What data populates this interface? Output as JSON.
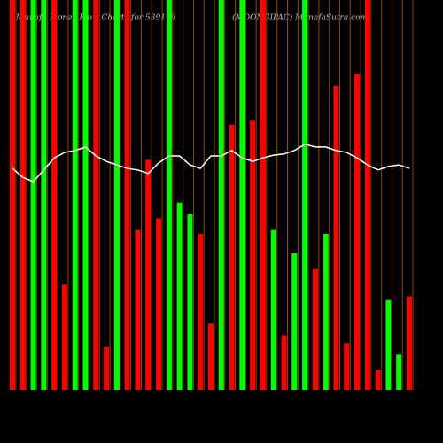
{
  "chart_data": {
    "type": "bar",
    "title": "Munafa Money Flow Charts for 539179",
    "subtitle": "(MOONGIPAC) MunafaSutra.com",
    "values": [
      100,
      100,
      100,
      100,
      100,
      27,
      100,
      100,
      100,
      11,
      100,
      100,
      41,
      59,
      44,
      100,
      48,
      45,
      40,
      17,
      100,
      68,
      100,
      69,
      100,
      41,
      14,
      35,
      100,
      31,
      40,
      78,
      12,
      81,
      100,
      5,
      23,
      9,
      24
    ],
    "bar_colors": [
      "red",
      "red",
      "lime",
      "lime",
      "red",
      "red",
      "lime",
      "lime",
      "red",
      "red",
      "lime",
      "red",
      "red",
      "red",
      "red",
      "lime",
      "lime",
      "lime",
      "red",
      "red",
      "lime",
      "red",
      "lime",
      "red",
      "red",
      "lime",
      "red",
      "lime",
      "lime",
      "red",
      "lime",
      "red",
      "red",
      "red",
      "red",
      "red",
      "lime",
      "lime",
      "red"
    ],
    "line_values": [
      56.8,
      54.5,
      53.4,
      56.4,
      59.5,
      60.9,
      61.4,
      62.3,
      60,
      58.6,
      57.7,
      56.8,
      56.4,
      55.5,
      58.2,
      60,
      60,
      57.7,
      56.8,
      60,
      60,
      61.4,
      59.5,
      58.6,
      59.5,
      60.2,
      60.5,
      61.4,
      63,
      62.3,
      62.3,
      61.4,
      60.9,
      59.5,
      57.7,
      56.4,
      57.3,
      57.7,
      56.8
    ],
    "line_color": "#ffffff",
    "ylim": [
      0,
      100
    ],
    "grid": true,
    "grid_color": "#8a4a00"
  }
}
